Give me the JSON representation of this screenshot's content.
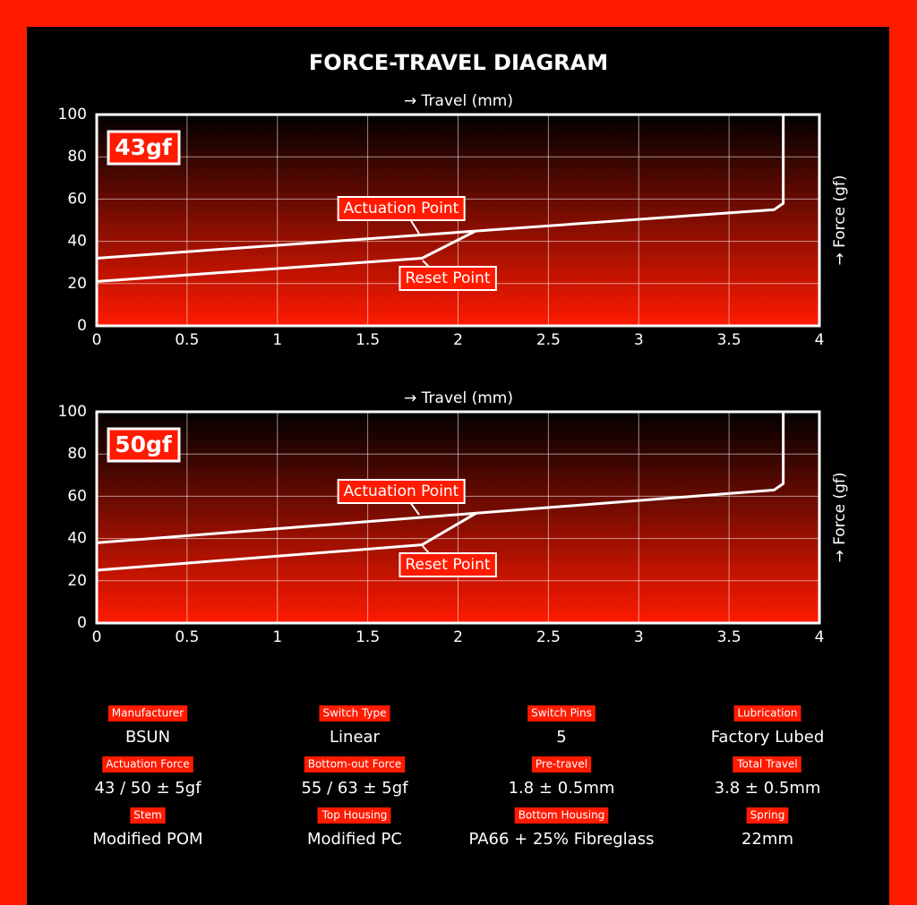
{
  "title": "FORCE-TRAVEL DIAGRAM",
  "chart_data": [
    {
      "type": "line",
      "badge": "43gf",
      "x_label": "→ Travel (mm)",
      "y_label": "→ Force (gf)",
      "xlim": [
        0,
        4
      ],
      "xticks": [
        0,
        0.5,
        1,
        1.5,
        2,
        2.5,
        3,
        3.5,
        4
      ],
      "ylim": [
        0,
        100
      ],
      "yticks": [
        0,
        20,
        40,
        60,
        80,
        100
      ],
      "grid": true,
      "series": [
        {
          "name": "Actuation Point",
          "color": "#ffffff",
          "x": [
            0,
            3.75,
            3.8,
            3.8
          ],
          "values": [
            32,
            55,
            58,
            100
          ]
        },
        {
          "name": "Reset Point",
          "color": "#ffffff",
          "x": [
            0,
            1.8,
            2.1
          ],
          "values": [
            21,
            32,
            45
          ]
        }
      ]
    },
    {
      "type": "line",
      "badge": "50gf",
      "x_label": "→ Travel (mm)",
      "y_label": "→ Force (gf)",
      "xlim": [
        0,
        4
      ],
      "xticks": [
        0,
        0.5,
        1,
        1.5,
        2,
        2.5,
        3,
        3.5,
        4
      ],
      "ylim": [
        0,
        100
      ],
      "yticks": [
        0,
        20,
        40,
        60,
        80,
        100
      ],
      "grid": true,
      "series": [
        {
          "name": "Actuation Point",
          "color": "#ffffff",
          "x": [
            0,
            3.75,
            3.8,
            3.8
          ],
          "values": [
            38,
            63,
            66,
            100
          ]
        },
        {
          "name": "Reset Point",
          "color": "#ffffff",
          "x": [
            0,
            1.8,
            2.1
          ],
          "values": [
            25,
            37,
            52
          ]
        }
      ]
    }
  ],
  "specs": [
    {
      "label": "Manufacturer",
      "value": "BSUN"
    },
    {
      "label": "Switch Type",
      "value": "Linear"
    },
    {
      "label": "Switch Pins",
      "value": "5"
    },
    {
      "label": "Lubrication",
      "value": "Factory Lubed"
    },
    {
      "label": "Actuation Force",
      "value": "43 / 50 ± 5gf"
    },
    {
      "label": "Bottom-out Force",
      "value": "55 / 63 ± 5gf"
    },
    {
      "label": "Pre-travel",
      "value": "1.8 ± 0.5mm"
    },
    {
      "label": "Total Travel",
      "value": "3.8 ± 0.5mm"
    },
    {
      "label": "Stem",
      "value": "Modified POM"
    },
    {
      "label": "Top Housing",
      "value": "Modified PC"
    },
    {
      "label": "Bottom Housing",
      "value": "PA66 + 25% Fibreglass"
    },
    {
      "label": "Spring",
      "value": "22mm"
    }
  ]
}
